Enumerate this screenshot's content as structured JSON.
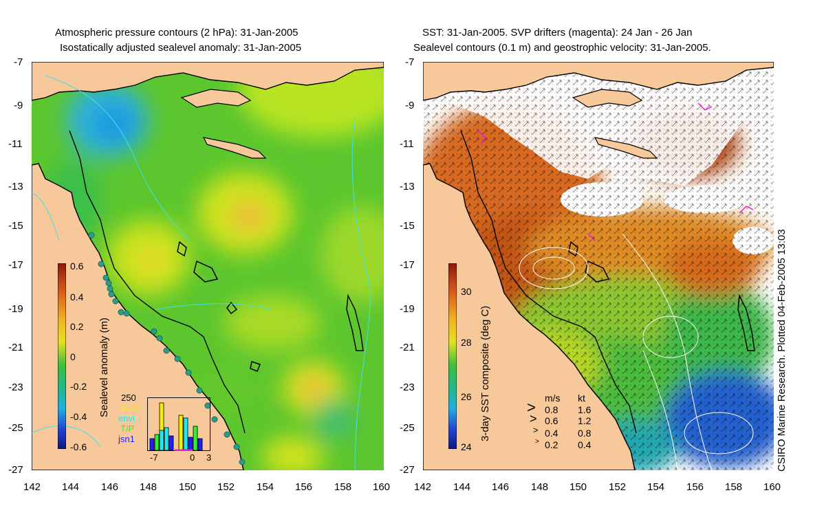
{
  "left_panel": {
    "title_line1": "Atmospheric pressure contours (2 hPa): 31-Jan-2005",
    "title_line2": "Isostatically adjusted sealevel anomaly: 31-Jan-2005",
    "colorbar_label": "Sealevel anomaly (m)",
    "colorbar_ticks": [
      "0.6",
      "0.4",
      "0.2",
      "0",
      "-0.2",
      "-0.4",
      "-0.6"
    ],
    "histogram": {
      "count_label": "250",
      "sources": [
        {
          "name": "GFO",
          "color": "#f0f000"
        },
        {
          "name": "envi",
          "color": "#20e8f0"
        },
        {
          "name": "T/P",
          "color": "#30f030"
        },
        {
          "name": "jsn1",
          "color": "#2020ff"
        }
      ],
      "axis_ticks": [
        "-7",
        "0",
        "3"
      ]
    }
  },
  "right_panel": {
    "title_line1": "SST: 31-Jan-2005. SVP drifters (magenta): 24 Jan - 26 Jan",
    "title_line2": "Sealevel contours (0.1 m) and geostrophic velocity: 31-Jan-2005.",
    "colorbar_label": "3-day SST composite (deg C)",
    "colorbar_ticks": [
      "30",
      "28",
      "26",
      "24"
    ],
    "velocity_legend": {
      "header_ms": "m/s",
      "header_kt": "kt",
      "rows": [
        {
          "ms": "0.8",
          "kt": "1.6"
        },
        {
          "ms": "0.6",
          "kt": "1.2"
        },
        {
          "ms": "0.4",
          "kt": "0.8"
        },
        {
          "ms": "0.2",
          "kt": "0.4"
        }
      ]
    },
    "credit": "CSIRO Marine Research. Plotted 04-Feb-2005 13:03"
  },
  "y_axis_ticks": [
    "-7",
    "-9",
    "-11",
    "-13",
    "-15",
    "-17",
    "-19",
    "-21",
    "-23",
    "-25",
    "-27"
  ],
  "x_axis_ticks": [
    "142",
    "144",
    "146",
    "148",
    "150",
    "152",
    "154",
    "156",
    "158",
    "160"
  ],
  "colors": {
    "land": "#f7c89a",
    "ocean_green": "#5cc62e",
    "coast": "#000000",
    "drifter": "#e020e0"
  }
}
